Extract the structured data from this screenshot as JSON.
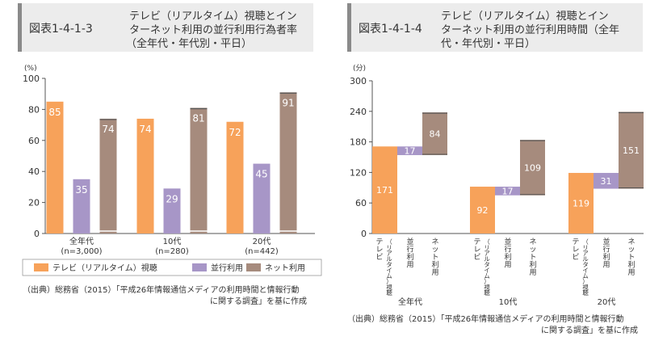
{
  "colors": {
    "tv": "#f7a25a",
    "concurrent": "#a796c7",
    "net": "#a68b7d",
    "header_bg": "#ececec",
    "header_bar": "#8a8a8a",
    "axis": "#555555",
    "text": "#333333"
  },
  "chart_data": [
    {
      "type": "bar",
      "figure_id": "図表1-4-1-3",
      "title_lines": [
        "テレビ（リアルタイム）視聴とイン",
        "ターネット利用の並行利用行為者率",
        "（全年代・年代別・平日）"
      ],
      "y_unit": "(%)",
      "ylim": [
        0,
        100
      ],
      "yticks": [
        "0",
        "20",
        "40",
        "60",
        "80",
        "100"
      ],
      "categories": [
        {
          "line1": "全年代",
          "line2": "(n=3,000)"
        },
        {
          "line1": "10代",
          "line2": "(n=280)"
        },
        {
          "line1": "20代",
          "line2": "(n=442)"
        }
      ],
      "series": [
        {
          "name": "テレビ（リアルタイム）視聴",
          "key": "tv",
          "values": [
            85,
            74,
            72
          ]
        },
        {
          "name": "並行利用",
          "key": "concurrent",
          "values": [
            35,
            29,
            45
          ]
        },
        {
          "name": "ネット利用",
          "key": "net",
          "values": [
            74,
            81,
            91
          ]
        }
      ],
      "source_lines": [
        "（出典）総務省（2015）「平成26年情報通信メディアの利用時間と情報行動",
        "に関する調査」を基に作成"
      ]
    },
    {
      "type": "waterfall",
      "figure_id": "図表1-4-1-4",
      "title_lines": [
        "テレビ（リアルタイム）視聴とイン",
        "ターネット利用の並行利用時間（全年",
        "代・年代別・平日）"
      ],
      "y_unit": "(分)",
      "ylim": [
        0,
        300
      ],
      "yticks": [
        "0",
        "60",
        "120",
        "180",
        "240",
        "300"
      ],
      "groups": [
        {
          "name": "全年代",
          "tv": 171,
          "concurrent": 17,
          "net": 84
        },
        {
          "name": "10代",
          "tv": 92,
          "concurrent": 17,
          "net": 109
        },
        {
          "name": "20代",
          "tv": 119,
          "concurrent": 31,
          "net": 151
        }
      ],
      "bar_labels": [
        [
          "テ",
          "レ",
          "ビ"
        ],
        [
          "（",
          "リ",
          "ア",
          "ル",
          "タ",
          "イ",
          "ム",
          "）",
          "視",
          "聴"
        ],
        [
          "並",
          "行",
          "利",
          "用"
        ],
        [
          "ネ",
          "ッ",
          "ト",
          "利",
          "用"
        ]
      ],
      "source_lines": [
        "（出典）総務省（2015）「平成26年情報通信メディアの利用時間と情報行動",
        "に関する調査」を基に作成"
      ]
    }
  ]
}
